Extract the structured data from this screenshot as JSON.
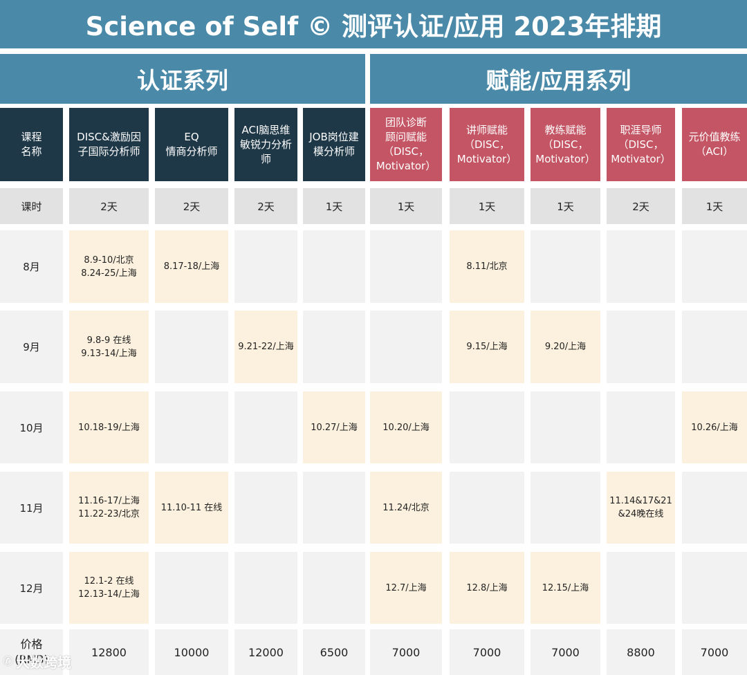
{
  "title": "Science of Self © 测评认证/应用 2023年排期",
  "sections": {
    "certification": "认证系列",
    "application": "赋能/应用系列"
  },
  "row_labels": {
    "course": "课程\n名称",
    "hours": "课时",
    "price": "价格\n(RMB)"
  },
  "courses": [
    {
      "name": "DISC&激励因\n子国际分析师",
      "hours": "2天",
      "price": "12800",
      "series": "certification",
      "color": "#1f3848"
    },
    {
      "name": "EQ\n情商分析师",
      "hours": "2天",
      "price": "10000",
      "series": "certification",
      "color": "#1f3848"
    },
    {
      "name": "ACI脑思维\n敏锐力分析\n师",
      "hours": "2天",
      "price": "12000",
      "series": "certification",
      "color": "#1f3848"
    },
    {
      "name": "JOB岗位建\n模分析师",
      "hours": "1天",
      "price": "6500",
      "series": "certification",
      "color": "#1f3848"
    },
    {
      "name": "团队诊断\n顾问赋能\n（DISC，\nMotivator）",
      "hours": "1天",
      "price": "7000",
      "series": "application",
      "color": "#c45564"
    },
    {
      "name": "讲师赋能\n（DISC，\nMotivator）",
      "hours": "1天",
      "price": "7000",
      "series": "application",
      "color": "#c45564"
    },
    {
      "name": "教练赋能\n（DISC，\nMotivator）",
      "hours": "1天",
      "price": "7000",
      "series": "application",
      "color": "#c45564"
    },
    {
      "name": "职涯导师\n（DISC，\nMotivator）",
      "hours": "2天",
      "price": "8800",
      "series": "application",
      "color": "#c45564"
    },
    {
      "name": "元价值教练\n（ACI）",
      "hours": "1天",
      "price": "7000",
      "series": "application",
      "color": "#c45564"
    }
  ],
  "months": [
    {
      "label": "8月",
      "cells": [
        "8.9-10/北京\n8.24-25/上海",
        "8.17-18/上海",
        "",
        "",
        "",
        "8.11/北京",
        "",
        "",
        ""
      ]
    },
    {
      "label": "9月",
      "cells": [
        "9.8-9 在线\n9.13-14/上海",
        "",
        "9.21-22/上海",
        "",
        "",
        "9.15/上海",
        "9.20/上海",
        "",
        ""
      ]
    },
    {
      "label": "10月",
      "cells": [
        "10.18-19/上海",
        "",
        "",
        "10.27/上海",
        "10.20/上海",
        "",
        "",
        "",
        "10.26/上海"
      ]
    },
    {
      "label": "11月",
      "cells": [
        "11.16-17/上海\n11.22-23/北京",
        "11.10-11 在线",
        "",
        "",
        "11.24/北京",
        "",
        "",
        "11.14&17&21\n&24晚在线",
        ""
      ]
    },
    {
      "label": "12月",
      "cells": [
        "12.1-2 在线\n12.13-14/上海",
        "",
        "",
        "",
        "12.7/上海",
        "12.8/上海",
        "12.15/上海",
        "",
        ""
      ]
    }
  ],
  "colors": {
    "title_bg": "#4a8aa8",
    "cert_header": "#1f3848",
    "app_header": "#c45564",
    "filled_cell": "#fcf1de",
    "empty_cell": "#f2f2f2",
    "hours_row": "#e2e2e2"
  },
  "watermark": {
    "text": "大数跨境",
    "icon": "wechat-logo-icon"
  }
}
